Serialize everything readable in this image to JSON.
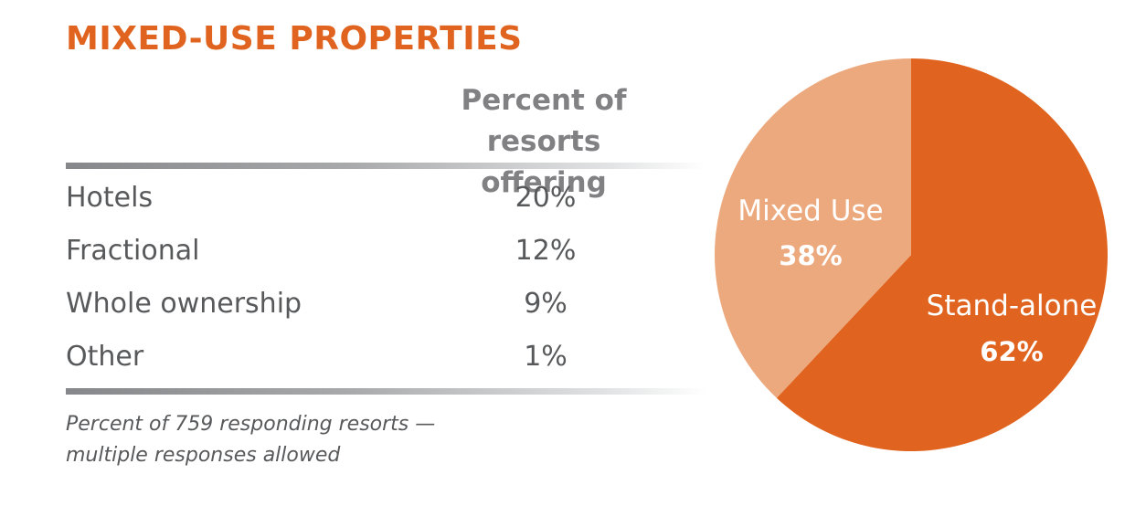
{
  "title": "MIXED-USE PROPERTIES",
  "table": {
    "header_line1": "Percent of",
    "header_line2": "resorts offering",
    "rows": [
      {
        "label": "Hotels",
        "value": "20%"
      },
      {
        "label": "Fractional",
        "value": "12%"
      },
      {
        "label": "Whole ownership",
        "value": "9%"
      },
      {
        "label": "Other",
        "value": "1%"
      }
    ],
    "footnote_line1": "Percent of 759 responding resorts —",
    "footnote_line2": "multiple responses allowed"
  },
  "chart_data": [
    {
      "type": "table",
      "title": "MIXED-USE PROPERTIES",
      "columns": [
        "",
        "Percent of resorts offering"
      ],
      "categories": [
        "Hotels",
        "Fractional",
        "Whole ownership",
        "Other"
      ],
      "values": [
        20,
        12,
        9,
        1
      ],
      "unit": "%"
    },
    {
      "type": "pie",
      "slices": [
        {
          "label": "Stand-alone",
          "value": 62,
          "display": "62%",
          "color": "#e0641f"
        },
        {
          "label": "Mixed Use",
          "value": 38,
          "display": "38%",
          "color": "#eda97e"
        }
      ],
      "start": "12 o'clock",
      "direction": "clockwise"
    }
  ]
}
